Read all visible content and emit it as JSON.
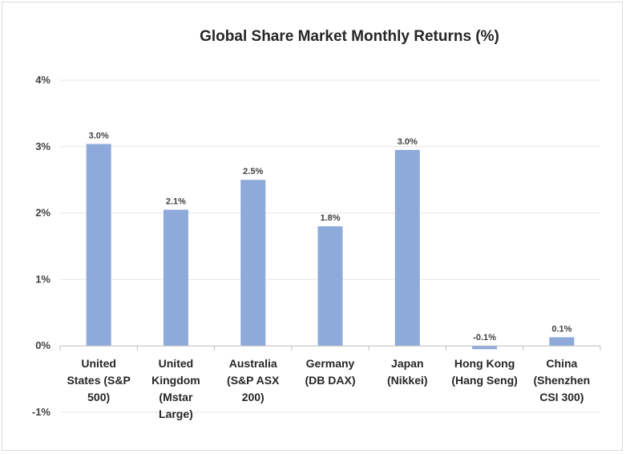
{
  "chart_data": {
    "type": "bar",
    "title": "Global Share Market Monthly Returns (%)",
    "xlabel": "",
    "ylabel": "",
    "ylim": [
      -1,
      4
    ],
    "yticks": [
      "-1%",
      "0%",
      "1%",
      "2%",
      "3%",
      "4%"
    ],
    "ytick_values": [
      -1,
      0,
      1,
      2,
      3,
      4
    ],
    "grid": true,
    "legend": "none",
    "bar_color": "#8eaadb",
    "categories": [
      [
        "United",
        "States (S&P",
        "500)"
      ],
      [
        "United",
        "Kingdom",
        "(Mstar",
        "Large)"
      ],
      [
        "Australia",
        "(S&P ASX",
        "200)"
      ],
      [
        "Germany",
        "(DB DAX)"
      ],
      [
        "Japan",
        "(Nikkei)"
      ],
      [
        "Hong Kong",
        "(Hang Seng)"
      ],
      [
        "China",
        "(Shenzhen",
        "CSI 300)"
      ]
    ],
    "values": [
      3.04,
      2.05,
      2.5,
      1.8,
      2.95,
      -0.05,
      0.13
    ],
    "data_labels": [
      "3.0%",
      "2.1%",
      "2.5%",
      "1.8%",
      "3.0%",
      "-0.1%",
      "0.1%"
    ]
  }
}
